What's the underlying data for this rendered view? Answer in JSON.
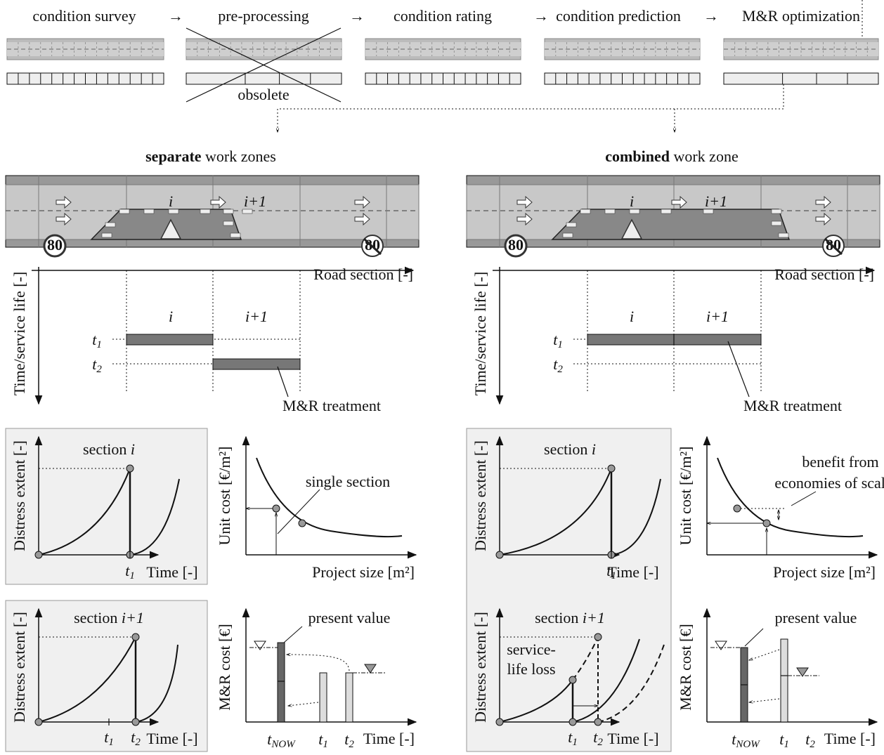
{
  "pipeline": {
    "steps": [
      "condition survey",
      "pre-processing",
      "condition rating",
      "condition prediction",
      "M&R optimization"
    ],
    "arrows": [
      "→",
      "→",
      "→",
      "→"
    ],
    "obsolete": "obsolete"
  },
  "panels": [
    {
      "title": {
        "bold": "separate",
        "rest": "work zones"
      },
      "road": {
        "sections": [
          "i",
          "i+1"
        ],
        "speed_limit": "80"
      },
      "schedule": {
        "x_label": "Road section [-]",
        "y_label": "Time/service life [-]",
        "sections": [
          "i",
          "i+1"
        ],
        "times": [
          {
            "base": "t",
            "sub": "1"
          },
          {
            "base": "t",
            "sub": "2"
          }
        ],
        "treatment": "M&R treatment"
      },
      "distress_i": {
        "title": {
          "text": "section",
          "var": "i"
        },
        "y_label": "Distress extent [-]",
        "x_label": "Time [-]",
        "ticks": [
          {
            "base": "t",
            "sub": "1"
          }
        ]
      },
      "unit_cost": {
        "y_label": "Unit cost [€/m²]",
        "x_label": "Project size [m²]",
        "annotation": [
          "single section"
        ]
      },
      "distress_i1": {
        "title": {
          "text": "section",
          "var": "i+1"
        },
        "y_label": "Distress extent [-]",
        "x_label": "Time [-]",
        "ticks": [
          {
            "base": "t",
            "sub": "1"
          },
          {
            "base": "t",
            "sub": "2"
          }
        ]
      },
      "cost": {
        "y_label": "M&R cost [€]",
        "x_label": "Time [-]",
        "annotation": "present value",
        "ticks": [
          {
            "base": "t",
            "sub": "NOW"
          },
          {
            "base": "t",
            "sub": "1"
          },
          {
            "base": "t",
            "sub": "2"
          }
        ]
      }
    },
    {
      "title": {
        "bold": "combined",
        "rest": "work zone"
      },
      "road": {
        "sections": [
          "i",
          "i+1"
        ],
        "speed_limit": "80"
      },
      "schedule": {
        "x_label": "Road section [-]",
        "y_label": "Time/service life [-]",
        "sections": [
          "i",
          "i+1"
        ],
        "times": [
          {
            "base": "t",
            "sub": "1"
          },
          {
            "base": "t",
            "sub": "2"
          }
        ],
        "treatment": "M&R treatment"
      },
      "distress_i": {
        "title": {
          "text": "section",
          "var": "i"
        },
        "y_label": "Distress extent [-]",
        "x_label": "Time [-]",
        "ticks": [
          {
            "base": "t",
            "sub": "1"
          }
        ]
      },
      "unit_cost": {
        "y_label": "Unit cost [€/m²]",
        "x_label": "Project size [m²]",
        "annotation": [
          "benefit from",
          "economies of scale"
        ]
      },
      "distress_i1": {
        "title": {
          "text": "section",
          "var": "i+1"
        },
        "y_label": "Distress extent [-]",
        "x_label": "Time [-]",
        "ticks": [
          {
            "base": "t",
            "sub": "1"
          },
          {
            "base": "t",
            "sub": "2"
          }
        ],
        "annotation": [
          "service-",
          "life loss"
        ]
      },
      "cost": {
        "y_label": "M&R cost [€]",
        "x_label": "Time [-]",
        "annotation": "present value",
        "ticks": [
          {
            "base": "t",
            "sub": "NOW"
          },
          {
            "base": "t",
            "sub": "1"
          },
          {
            "base": "t",
            "sub": "2"
          }
        ]
      }
    }
  ]
}
